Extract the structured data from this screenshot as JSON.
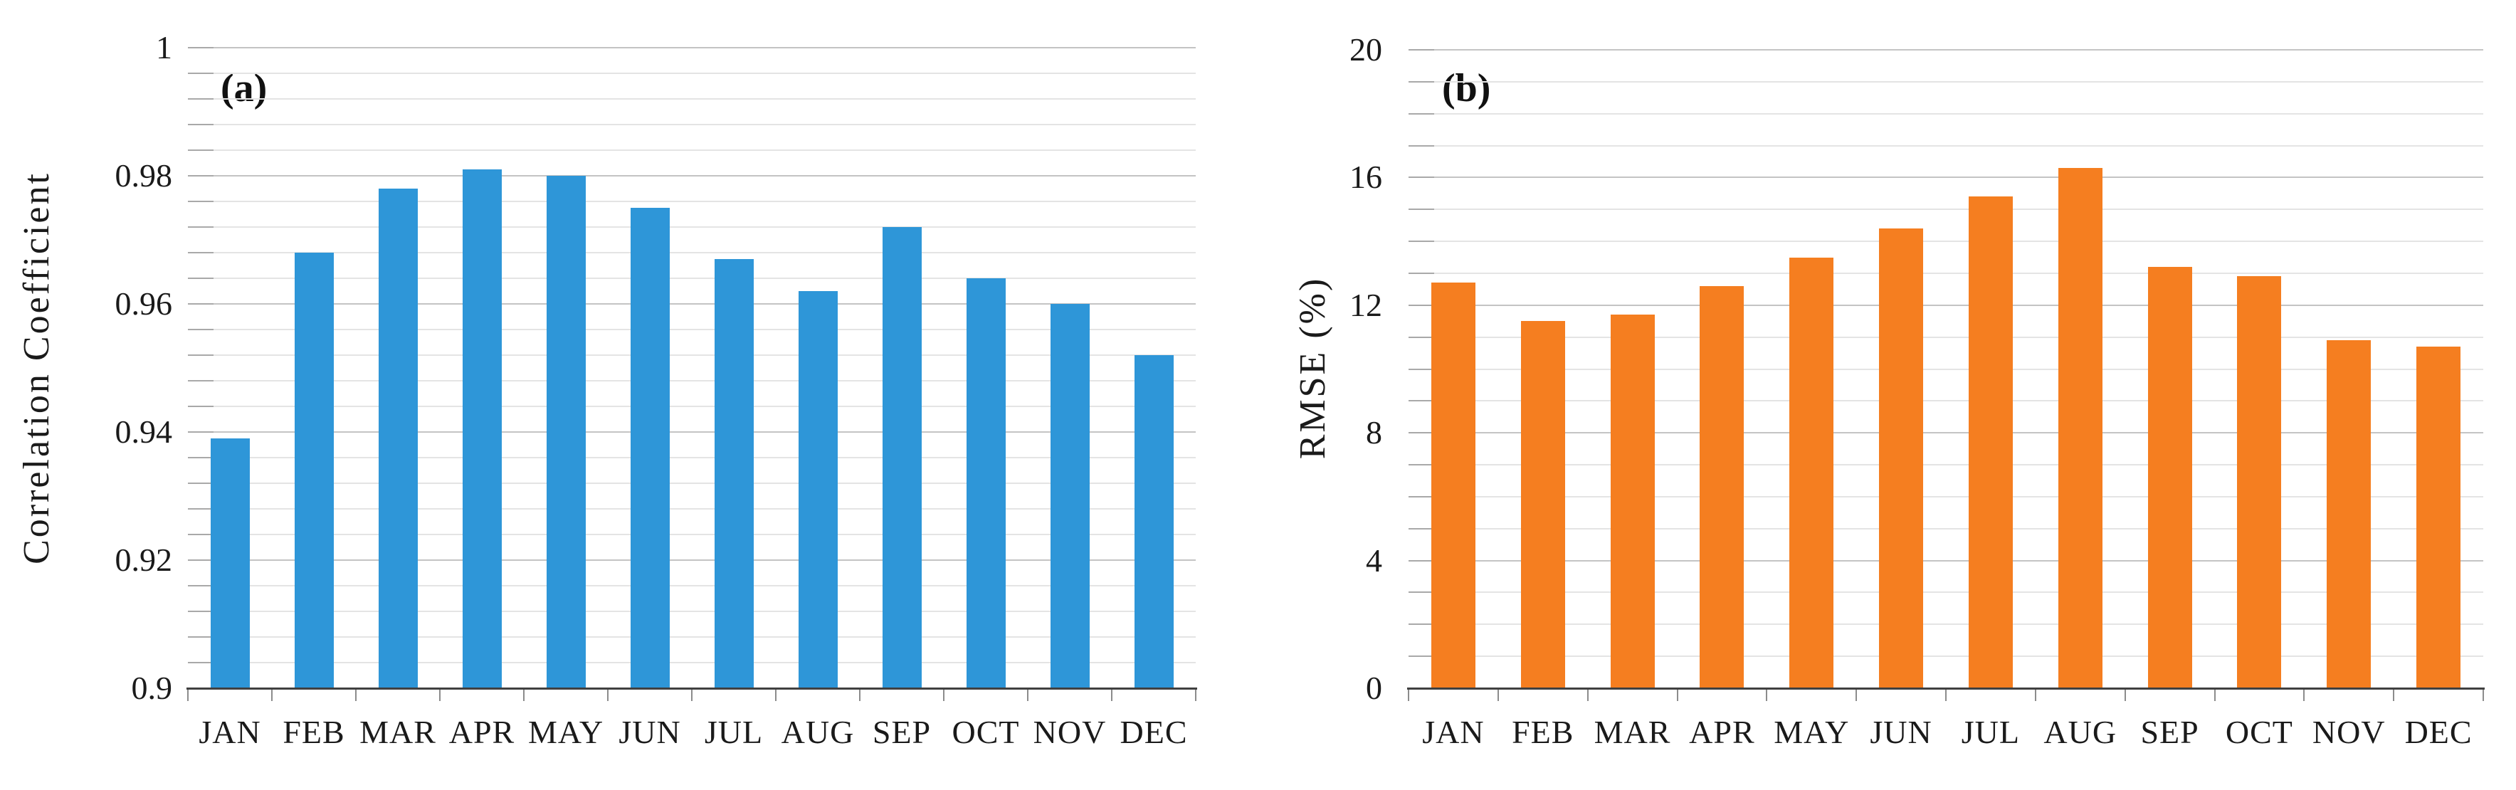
{
  "chart_data": [
    {
      "type": "bar",
      "panel_label": "(a)",
      "ylabel": "Correlation Coefficient",
      "xlabel": "",
      "categories": [
        "JAN",
        "FEB",
        "MAR",
        "APR",
        "MAY",
        "JUN",
        "JUL",
        "AUG",
        "SEP",
        "OCT",
        "NOV",
        "DEC"
      ],
      "values": [
        0.939,
        0.968,
        0.978,
        0.981,
        0.98,
        0.975,
        0.967,
        0.962,
        0.972,
        0.964,
        0.96,
        0.952
      ],
      "ylim": [
        0.9,
        1.0
      ],
      "ytick_step": 0.02,
      "minor_step": 0.004,
      "ytick_labels": [
        "1",
        "0.98",
        "0.96",
        "0.94",
        "0.92",
        "0.9"
      ],
      "bar_color": "#2e96d8",
      "grid": true,
      "legend": false
    },
    {
      "type": "bar",
      "panel_label": "(b)",
      "ylabel": "RMSE (%)",
      "xlabel": "",
      "categories": [
        "JAN",
        "FEB",
        "MAR",
        "APR",
        "MAY",
        "JUN",
        "JUL",
        "AUG",
        "SEP",
        "OCT",
        "NOV",
        "DEC"
      ],
      "values": [
        12.7,
        11.5,
        11.7,
        12.6,
        13.5,
        14.4,
        15.4,
        16.3,
        13.2,
        12.9,
        10.9,
        10.7
      ],
      "ylim": [
        0,
        20
      ],
      "ytick_step": 4,
      "minor_step": 1,
      "ytick_labels": [
        "20",
        "16",
        "12",
        "8",
        "4",
        "0"
      ],
      "bar_color": "#f57e20",
      "grid": true,
      "legend": false
    }
  ],
  "colors": {
    "background": "#ffffff",
    "axis_line": "#404040",
    "tick": "#8c8c8c",
    "grid_major": "#c4c4c4",
    "grid_minor": "#e4e4e4",
    "text": "#1a1a1a"
  }
}
